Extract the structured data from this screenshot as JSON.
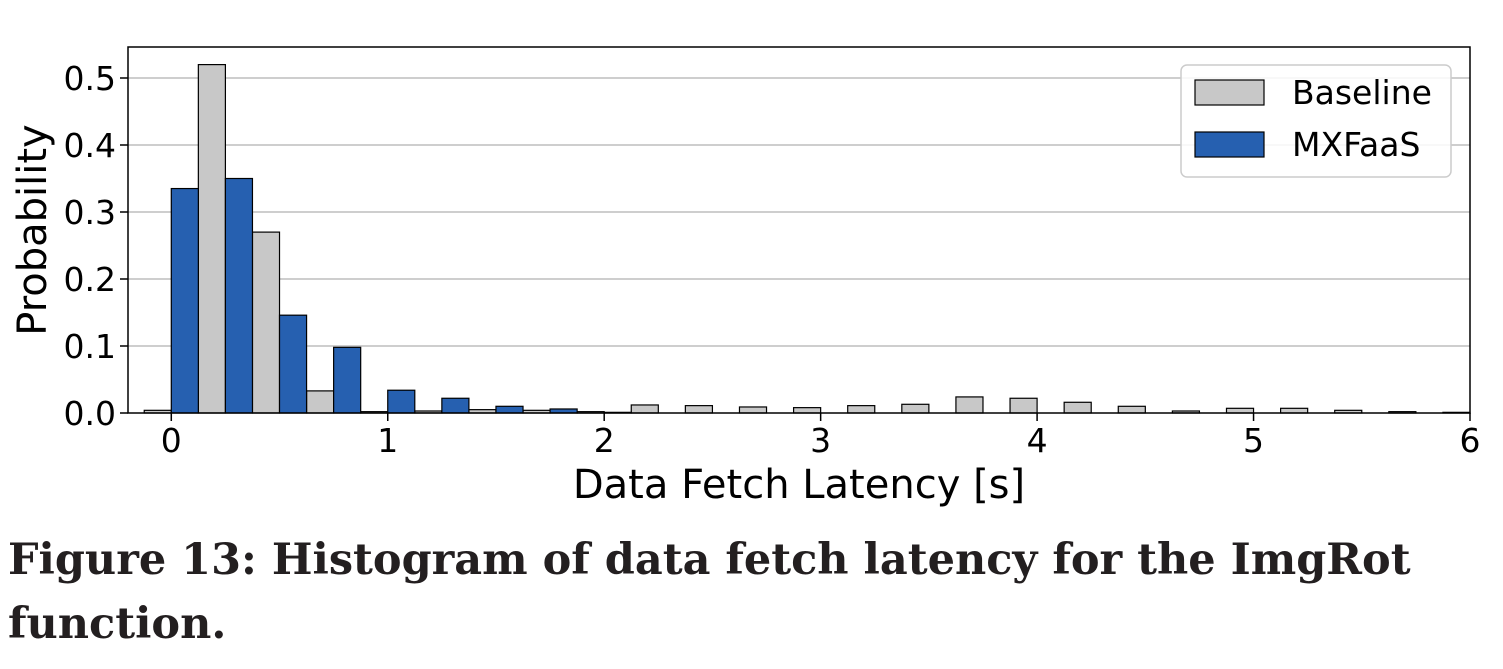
{
  "chart_data": {
    "type": "bar",
    "title": "",
    "xlabel": "Data Fetch Latency [s]",
    "ylabel": "Probability",
    "xlim": [
      -0.2,
      6.0
    ],
    "ylim": [
      0,
      0.55
    ],
    "xticks": [
      0,
      1,
      2,
      3,
      4,
      5,
      6
    ],
    "xtick_labels": [
      "0",
      "1",
      "2",
      "3",
      "4",
      "5",
      "6"
    ],
    "yticks": [
      0.0,
      0.1,
      0.2,
      0.3,
      0.4,
      0.5
    ],
    "ytick_labels": [
      "0.0",
      "0.1",
      "0.2",
      "0.3",
      "0.4",
      "0.5"
    ],
    "grid": "horizontal",
    "legend_position": "top-right",
    "bin_width": 0.25,
    "bin_centers": [
      0.0,
      0.25,
      0.5,
      0.75,
      1.0,
      1.25,
      1.5,
      1.75,
      2.0,
      2.25,
      2.5,
      2.75,
      3.0,
      3.25,
      3.5,
      3.75,
      4.0,
      4.25,
      4.5,
      4.75,
      5.0,
      5.25,
      5.5,
      5.75,
      6.0
    ],
    "series": [
      {
        "name": "Baseline",
        "color": "#c8c8c8",
        "values": [
          0.004,
          0.52,
          0.27,
          0.033,
          0.002,
          0.003,
          0.005,
          0.004,
          0.002,
          0.012,
          0.011,
          0.009,
          0.008,
          0.011,
          0.013,
          0.024,
          0.022,
          0.016,
          0.01,
          0.003,
          0.007,
          0.007,
          0.004,
          0.002,
          0.001
        ]
      },
      {
        "name": "MXFaaS",
        "color": "#2660b0",
        "values": [
          0.335,
          0.35,
          0.146,
          0.098,
          0.034,
          0.022,
          0.01,
          0.006,
          0.001,
          0,
          0,
          0,
          0,
          0,
          0,
          0,
          0,
          0,
          0,
          0,
          0,
          0,
          0,
          0,
          0
        ]
      }
    ]
  },
  "caption": "Figure 13: Histogram of data fetch latency for the ImgRot function."
}
